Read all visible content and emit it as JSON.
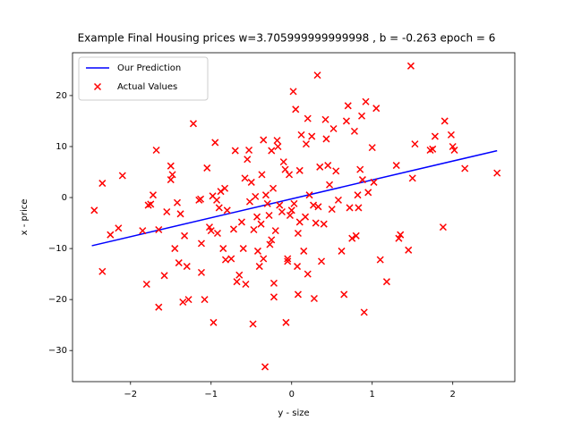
{
  "chart_data": {
    "type": "scatter",
    "title": "Example Final Housing prices w=3.705999999999998 , b = -0.263 epoch = 6",
    "x_label": "y - size",
    "y_label": "x - price",
    "xlim": [
      -2.72,
      2.77
    ],
    "ylim": [
      -36.1,
      28.4
    ],
    "xticks": [
      {
        "value": -2,
        "label": "−2"
      },
      {
        "value": -1,
        "label": "−1"
      },
      0,
      1,
      2
    ],
    "yticks": [
      {
        "value": -30,
        "label": "−30"
      },
      {
        "value": -20,
        "label": "−20"
      },
      {
        "value": -10,
        "label": "−10"
      },
      0,
      10,
      20
    ],
    "legend": "upper left",
    "series": [
      {
        "name": "Our Prediction",
        "kind": "line",
        "color": "#0000ff",
        "x": [
          -2.48,
          2.55
        ],
        "values": [
          -9.45,
          9.19
        ]
      },
      {
        "name": "Actual Values",
        "kind": "scatter",
        "color": "#ff0000",
        "x": [
          -2.45,
          -2.35,
          -2.35,
          -2.25,
          -2.15,
          -2.1,
          -1.85,
          -1.8,
          -1.78,
          -1.75,
          -1.72,
          -1.68,
          -1.65,
          -1.65,
          -1.58,
          -1.55,
          -1.5,
          -1.48,
          -1.45,
          -1.42,
          -1.4,
          -1.38,
          -1.35,
          -1.33,
          -1.3,
          -1.28,
          -1.22,
          -1.15,
          -1.13,
          -1.12,
          -1.12,
          -1.08,
          -1.05,
          -1.02,
          -1.0,
          -0.98,
          -0.97,
          -0.95,
          -0.93,
          -0.92,
          -0.9,
          -0.88,
          -0.85,
          -0.83,
          -0.82,
          -0.8,
          -0.75,
          -0.72,
          -0.7,
          -0.68,
          -0.65,
          -0.62,
          -0.6,
          -0.58,
          -0.57,
          -0.55,
          -0.53,
          -0.52,
          -0.5,
          -0.48,
          -0.47,
          -0.45,
          -0.43,
          -0.42,
          -0.4,
          -0.38,
          -0.37,
          -0.35,
          -0.35,
          -0.33,
          -0.32,
          -0.3,
          -0.28,
          -0.27,
          -0.25,
          -0.25,
          -0.23,
          -0.22,
          -0.22,
          -0.2,
          -0.18,
          -0.17,
          -0.15,
          -0.12,
          -0.1,
          -0.08,
          -0.07,
          -0.05,
          -0.05,
          -0.03,
          -0.02,
          0.0,
          0.02,
          0.03,
          0.05,
          0.07,
          0.08,
          0.08,
          0.1,
          0.1,
          0.12,
          0.15,
          0.17,
          0.18,
          0.2,
          0.2,
          0.22,
          0.25,
          0.27,
          0.28,
          0.3,
          0.32,
          0.33,
          0.35,
          0.37,
          0.4,
          0.42,
          0.43,
          0.45,
          0.47,
          0.5,
          0.52,
          0.55,
          0.58,
          0.62,
          0.65,
          0.68,
          0.7,
          0.72,
          0.75,
          0.78,
          0.8,
          0.82,
          0.83,
          0.85,
          0.87,
          0.9,
          0.92,
          0.95,
          1.0,
          1.02,
          1.05,
          1.1,
          1.18,
          1.3,
          1.33,
          1.35,
          1.45,
          1.48,
          1.5,
          1.53,
          1.72,
          1.78,
          1.88,
          1.9,
          1.98,
          2.0,
          2.02,
          2.15,
          2.55,
          1.75,
          0.88,
          -1.5
        ],
        "values": [
          -2.5,
          2.8,
          -14.5,
          -7.3,
          -6,
          4.3,
          -6.5,
          -17,
          -1.5,
          -1.3,
          0.5,
          9.3,
          -21.5,
          -6.3,
          -15.3,
          -2.8,
          6.2,
          4.5,
          -10,
          -1,
          -12.8,
          -3.2,
          -20.5,
          -7.5,
          -13.5,
          -20,
          14.5,
          -0.5,
          -0.3,
          -9,
          -14.7,
          -20,
          5.8,
          -5.8,
          -6.5,
          0.3,
          -24.5,
          10.8,
          -0.5,
          -7,
          -2,
          1.2,
          -10,
          1.8,
          -12.2,
          -2.5,
          -12,
          -6.2,
          9.2,
          -16.5,
          -15.2,
          -4.8,
          -10,
          3.8,
          -17,
          7.5,
          9.3,
          -0.8,
          3,
          -24.8,
          -6.3,
          0.2,
          -3.8,
          -10.5,
          -13.5,
          -5.2,
          4.5,
          11.3,
          -12,
          -33.2,
          0.5,
          -1.2,
          -3.5,
          -9.2,
          -8.3,
          9.2,
          1.8,
          -16.8,
          -19.5,
          -6.5,
          11.2,
          10,
          -1.5,
          -2.8,
          7,
          5.5,
          -24.5,
          -12,
          -12.5,
          4.5,
          -3.5,
          -2.5,
          20.8,
          -1.2,
          17.3,
          -13.5,
          -19,
          -7,
          -4.8,
          5.3,
          12.3,
          -10.5,
          -3.8,
          10.5,
          15.5,
          -15,
          0.5,
          12,
          -1.5,
          -19.8,
          -5,
          24,
          -1.8,
          6,
          -12.5,
          -5.2,
          15.3,
          11.5,
          6.3,
          2.5,
          -2.3,
          13.5,
          5.2,
          -0.5,
          -10.5,
          -19,
          15,
          18,
          -2,
          -8,
          13,
          -7.5,
          0.5,
          -2,
          5.5,
          16,
          -22.5,
          18.8,
          1,
          9.8,
          3,
          17.5,
          -12.2,
          -16.5,
          6.3,
          -8,
          -7.3,
          -10.3,
          25.8,
          3.8,
          10.5,
          9.3,
          12,
          -5.8,
          15,
          12.3,
          10,
          9.3,
          5.7,
          4.8,
          9.5,
          3.5,
          3.5
        ]
      }
    ]
  }
}
